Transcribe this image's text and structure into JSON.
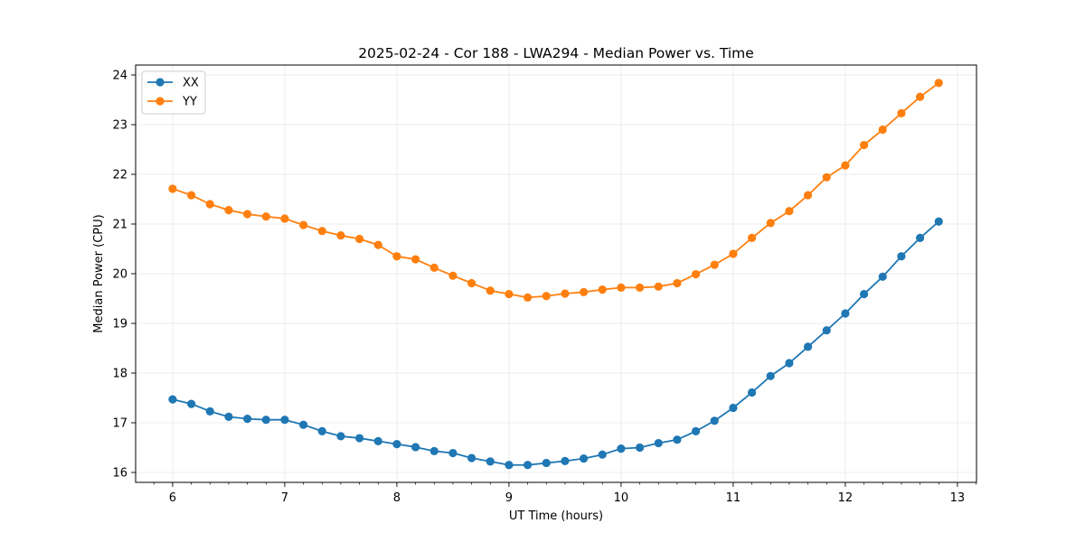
{
  "chart_data": {
    "type": "line",
    "title": "2025-02-24 - Cor 188 - LWA294 - Median Power vs. Time",
    "xlabel": "UT Time (hours)",
    "ylabel": "Median Power (CPU)",
    "xlim": [
      5.67,
      13.17
    ],
    "ylim": [
      15.8,
      24.2
    ],
    "xticks": [
      6,
      7,
      8,
      9,
      10,
      11,
      12,
      13
    ],
    "xtick_labels": [
      "6",
      "7",
      "8",
      "9",
      "10",
      "11",
      "12",
      "13"
    ],
    "yticks": [
      16,
      17,
      18,
      19,
      20,
      21,
      22,
      23,
      24
    ],
    "ytick_labels": [
      "16",
      "17",
      "18",
      "19",
      "20",
      "21",
      "22",
      "23",
      "24"
    ],
    "grid": true,
    "legend_position": "upper-left",
    "x": [
      6.0,
      6.1667,
      6.3333,
      6.5,
      6.6667,
      6.8333,
      7.0,
      7.1667,
      7.3333,
      7.5,
      7.6667,
      7.8333,
      8.0,
      8.1667,
      8.3333,
      8.5,
      8.6667,
      8.8333,
      9.0,
      9.1667,
      9.3333,
      9.5,
      9.6667,
      9.8333,
      10.0,
      10.1667,
      10.3333,
      10.5,
      10.6667,
      10.8333,
      11.0,
      11.1667,
      11.3333,
      11.5,
      11.6667,
      11.8333,
      12.0,
      12.1667,
      12.3333,
      12.5,
      12.6667,
      12.8333
    ],
    "series": [
      {
        "name": "XX",
        "color": "#1f77b4",
        "values": [
          17.47,
          17.38,
          17.23,
          17.12,
          17.08,
          17.06,
          17.06,
          16.96,
          16.83,
          16.73,
          16.69,
          16.63,
          16.57,
          16.51,
          16.43,
          16.39,
          16.29,
          16.22,
          16.15,
          16.15,
          16.19,
          16.23,
          16.28,
          16.36,
          16.48,
          16.5,
          16.59,
          16.66,
          16.83,
          17.04,
          17.3,
          17.61,
          17.94,
          18.2,
          18.53,
          18.86,
          19.2,
          19.59,
          19.94,
          20.35,
          20.72,
          21.05
        ]
      },
      {
        "name": "YY",
        "color": "#ff7f0e",
        "values": [
          21.71,
          21.58,
          21.4,
          21.28,
          21.2,
          21.15,
          21.11,
          20.98,
          20.86,
          20.77,
          20.7,
          20.58,
          20.35,
          20.29,
          20.12,
          19.96,
          19.81,
          19.66,
          19.59,
          19.52,
          19.55,
          19.6,
          19.63,
          19.68,
          19.72,
          19.72,
          19.74,
          19.81,
          19.99,
          20.18,
          20.4,
          20.72,
          21.02,
          21.26,
          21.58,
          21.94,
          22.18,
          22.59,
          22.9,
          23.23,
          23.56,
          23.84
        ]
      }
    ]
  }
}
